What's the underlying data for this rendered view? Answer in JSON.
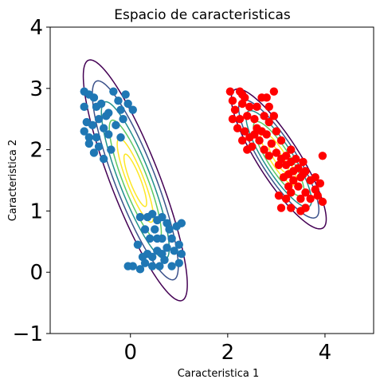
{
  "chart_data": {
    "type": "scatter",
    "title": "Espacio de caracteristicas",
    "xlabel": "Caracteristica 1",
    "ylabel": "Caracteristica 2",
    "xlim": [
      -1.65,
      5.0
    ],
    "ylim": [
      -1.0,
      4.0
    ],
    "xticks": [
      0,
      2,
      4
    ],
    "xtick_labels": [
      "0",
      "2",
      "4"
    ],
    "yticks": [
      -1,
      0,
      1,
      2,
      3,
      4
    ],
    "ytick_labels": [
      "−1",
      "0",
      "1",
      "2",
      "3",
      "4"
    ],
    "grid": false,
    "contour_colors": [
      "#440154",
      "#3b528b",
      "#21918c",
      "#5ec962",
      "#fde725"
    ],
    "series": [
      {
        "color": "#1f77b4",
        "points": [
          [
            -0.95,
            2.95
          ],
          [
            -0.85,
            2.9
          ],
          [
            -0.75,
            2.85
          ],
          [
            -0.95,
            2.7
          ],
          [
            -0.7,
            2.7
          ],
          [
            -0.9,
            2.45
          ],
          [
            -0.78,
            2.4
          ],
          [
            -0.65,
            2.5
          ],
          [
            -0.95,
            2.3
          ],
          [
            -0.85,
            2.2
          ],
          [
            -0.7,
            2.2
          ],
          [
            -0.55,
            2.35
          ],
          [
            -0.45,
            2.25
          ],
          [
            -0.65,
            2.05
          ],
          [
            -0.75,
            1.95
          ],
          [
            -0.55,
            1.85
          ],
          [
            -0.4,
            2.0
          ],
          [
            -0.6,
            2.75
          ],
          [
            -0.45,
            2.6
          ],
          [
            -0.35,
            2.95
          ],
          [
            -0.25,
            2.8
          ],
          [
            -0.2,
            2.65
          ],
          [
            -0.3,
            2.4
          ],
          [
            -0.2,
            2.2
          ],
          [
            -0.1,
            2.9
          ],
          [
            -0.05,
            2.75
          ],
          [
            0.05,
            2.65
          ],
          [
            -0.15,
            2.5
          ],
          [
            -0.5,
            2.55
          ],
          [
            -0.85,
            2.1
          ],
          [
            0.2,
            0.9
          ],
          [
            0.35,
            0.9
          ],
          [
            0.45,
            0.95
          ],
          [
            0.55,
            0.85
          ],
          [
            0.65,
            0.9
          ],
          [
            0.75,
            0.8
          ],
          [
            0.3,
            0.7
          ],
          [
            0.5,
            0.7
          ],
          [
            0.8,
            0.7
          ],
          [
            0.4,
            0.55
          ],
          [
            0.55,
            0.55
          ],
          [
            0.65,
            0.55
          ],
          [
            0.85,
            0.55
          ],
          [
            0.75,
            0.4
          ],
          [
            0.55,
            0.35
          ],
          [
            0.35,
            0.3
          ],
          [
            0.25,
            0.25
          ],
          [
            0.45,
            0.25
          ],
          [
            0.65,
            0.3
          ],
          [
            0.7,
            0.2
          ],
          [
            0.9,
            0.35
          ],
          [
            1.0,
            0.45
          ],
          [
            1.05,
            0.3
          ],
          [
            1.0,
            0.15
          ],
          [
            0.85,
            0.1
          ],
          [
            0.6,
            0.1
          ],
          [
            0.45,
            0.1
          ],
          [
            0.2,
            0.05
          ],
          [
            0.05,
            0.1
          ],
          [
            -0.05,
            0.1
          ],
          [
            0.95,
            0.75
          ],
          [
            1.05,
            0.8
          ],
          [
            0.3,
            0.15
          ],
          [
            0.15,
            0.45
          ]
        ]
      },
      {
        "color": "#ff0000",
        "points": [
          [
            2.05,
            2.95
          ],
          [
            2.25,
            2.95
          ],
          [
            2.35,
            2.85
          ],
          [
            2.1,
            2.8
          ],
          [
            2.3,
            2.75
          ],
          [
            2.15,
            2.65
          ],
          [
            2.45,
            2.7
          ],
          [
            2.6,
            2.7
          ],
          [
            2.7,
            2.85
          ],
          [
            2.8,
            2.85
          ],
          [
            2.85,
            2.7
          ],
          [
            2.95,
            2.95
          ],
          [
            2.1,
            2.5
          ],
          [
            2.25,
            2.5
          ],
          [
            2.4,
            2.55
          ],
          [
            2.55,
            2.5
          ],
          [
            2.75,
            2.55
          ],
          [
            2.85,
            2.45
          ],
          [
            2.2,
            2.35
          ],
          [
            2.35,
            2.3
          ],
          [
            2.45,
            2.2
          ],
          [
            2.3,
            2.15
          ],
          [
            2.6,
            2.35
          ],
          [
            2.7,
            2.3
          ],
          [
            2.8,
            2.25
          ],
          [
            2.65,
            2.15
          ],
          [
            2.5,
            2.05
          ],
          [
            2.4,
            2.0
          ],
          [
            3.0,
            2.3
          ],
          [
            2.9,
            2.1
          ],
          [
            2.75,
            2.0
          ],
          [
            2.85,
            1.9
          ],
          [
            3.0,
            1.95
          ],
          [
            3.1,
            1.85
          ],
          [
            3.2,
            1.9
          ],
          [
            3.05,
            1.75
          ],
          [
            3.2,
            1.75
          ],
          [
            3.3,
            1.8
          ],
          [
            3.35,
            1.65
          ],
          [
            3.45,
            1.7
          ],
          [
            3.25,
            1.6
          ],
          [
            3.15,
            1.55
          ],
          [
            3.35,
            1.5
          ],
          [
            3.5,
            1.55
          ],
          [
            3.55,
            1.8
          ],
          [
            3.4,
            1.85
          ],
          [
            3.6,
            1.65
          ],
          [
            3.7,
            1.5
          ],
          [
            3.45,
            1.4
          ],
          [
            3.6,
            1.3
          ],
          [
            3.8,
            1.35
          ],
          [
            3.9,
            1.45
          ],
          [
            3.85,
            1.25
          ],
          [
            3.7,
            1.2
          ],
          [
            3.5,
            1.2
          ],
          [
            3.3,
            1.3
          ],
          [
            3.2,
            1.2
          ],
          [
            3.05,
            1.25
          ],
          [
            3.1,
            1.05
          ],
          [
            3.3,
            1.05
          ],
          [
            3.5,
            1.0
          ],
          [
            3.6,
            1.05
          ],
          [
            3.95,
            1.15
          ],
          [
            3.95,
            1.9
          ],
          [
            3.1,
            2.15
          ],
          [
            3.3,
            2.0
          ],
          [
            2.3,
            2.9
          ],
          [
            2.95,
            2.55
          ],
          [
            3.55,
            1.6
          ],
          [
            3.8,
            1.55
          ],
          [
            3.25,
            1.4
          ],
          [
            2.55,
            2.25
          ]
        ]
      }
    ],
    "gaussians": [
      {
        "mean": [
          0.1,
          1.5
        ],
        "angle_deg": -63.4,
        "sigma_major": 0.95,
        "sigma_minor": 0.21,
        "levels": [
          2.3,
          1.9,
          1.5,
          1.15,
          0.8,
          0.5
        ]
      },
      {
        "mean": [
          3.05,
          1.85
        ],
        "angle_deg": -50.2,
        "sigma_major": 0.5,
        "sigma_minor": 0.135,
        "levels": [
          2.9,
          2.45,
          2.0,
          1.55,
          1.1,
          0.6
        ]
      }
    ]
  }
}
